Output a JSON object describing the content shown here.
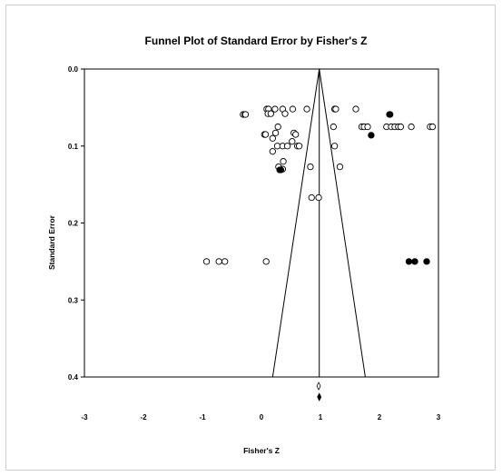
{
  "chart_data": {
    "type": "scatter",
    "title": "Funnel Plot of Standard Error by Fisher's Z",
    "xlabel": "Fisher's Z",
    "ylabel": "Standard Error",
    "xlim": [
      -3,
      3
    ],
    "ylim": [
      0.0,
      0.4
    ],
    "y_inverted": true,
    "grid": false,
    "xticks": [
      "-3",
      "-2",
      "-1",
      "0",
      "1",
      "2",
      "3"
    ],
    "yticks": [
      "0.0",
      "0.1",
      "0.2",
      "0.3",
      "0.4"
    ],
    "pooled_estimate": 0.98,
    "funnel": {
      "apex": [
        0.98,
        0.0
      ],
      "base": [
        [
          0.19,
          0.4
        ],
        [
          1.76,
          0.4
        ]
      ]
    },
    "series": [
      {
        "marker": "open-circle",
        "points": [
          [
            -0.31,
            0.059
          ],
          [
            -0.28,
            0.059
          ],
          [
            -0.27,
            0.059
          ],
          [
            0.09,
            0.052
          ],
          [
            0.12,
            0.052
          ],
          [
            0.23,
            0.052
          ],
          [
            0.36,
            0.052
          ],
          [
            0.53,
            0.052
          ],
          [
            0.77,
            0.052
          ],
          [
            1.24,
            0.052
          ],
          [
            1.26,
            0.052
          ],
          [
            1.6,
            0.052
          ],
          [
            0.11,
            0.058
          ],
          [
            0.16,
            0.058
          ],
          [
            0.4,
            0.058
          ],
          [
            0.28,
            0.075
          ],
          [
            1.22,
            0.075
          ],
          [
            1.7,
            0.075
          ],
          [
            1.74,
            0.075
          ],
          [
            1.8,
            0.075
          ],
          [
            2.12,
            0.075
          ],
          [
            2.2,
            0.075
          ],
          [
            2.26,
            0.075
          ],
          [
            2.32,
            0.075
          ],
          [
            2.36,
            0.075
          ],
          [
            2.54,
            0.075
          ],
          [
            2.86,
            0.075
          ],
          [
            2.9,
            0.075
          ],
          [
            0.24,
            0.083
          ],
          [
            0.55,
            0.083
          ],
          [
            0.05,
            0.085
          ],
          [
            0.07,
            0.085
          ],
          [
            0.58,
            0.085
          ],
          [
            0.19,
            0.09
          ],
          [
            0.52,
            0.094
          ],
          [
            0.27,
            0.1
          ],
          [
            0.36,
            0.1
          ],
          [
            0.44,
            0.1
          ],
          [
            0.61,
            0.1
          ],
          [
            0.64,
            0.1
          ],
          [
            1.24,
            0.1
          ],
          [
            0.19,
            0.107
          ],
          [
            0.37,
            0.12
          ],
          [
            0.29,
            0.127
          ],
          [
            0.83,
            0.127
          ],
          [
            1.33,
            0.127
          ],
          [
            0.36,
            0.13
          ],
          [
            0.85,
            0.167
          ],
          [
            0.97,
            0.167
          ],
          [
            -0.93,
            0.25
          ],
          [
            -0.72,
            0.25
          ],
          [
            -0.62,
            0.25
          ],
          [
            0.08,
            0.25
          ]
        ]
      },
      {
        "marker": "filled-circle",
        "points": [
          [
            2.17,
            0.059
          ],
          [
            2.18,
            0.059
          ],
          [
            1.86,
            0.086
          ],
          [
            0.31,
            0.131
          ],
          [
            0.33,
            0.131
          ],
          [
            2.5,
            0.25
          ],
          [
            2.6,
            0.25
          ],
          [
            2.8,
            0.25
          ]
        ]
      }
    ],
    "diamonds": [
      {
        "x": 0.97,
        "kind": "open"
      },
      {
        "x": 0.98,
        "kind": "filled"
      }
    ]
  }
}
